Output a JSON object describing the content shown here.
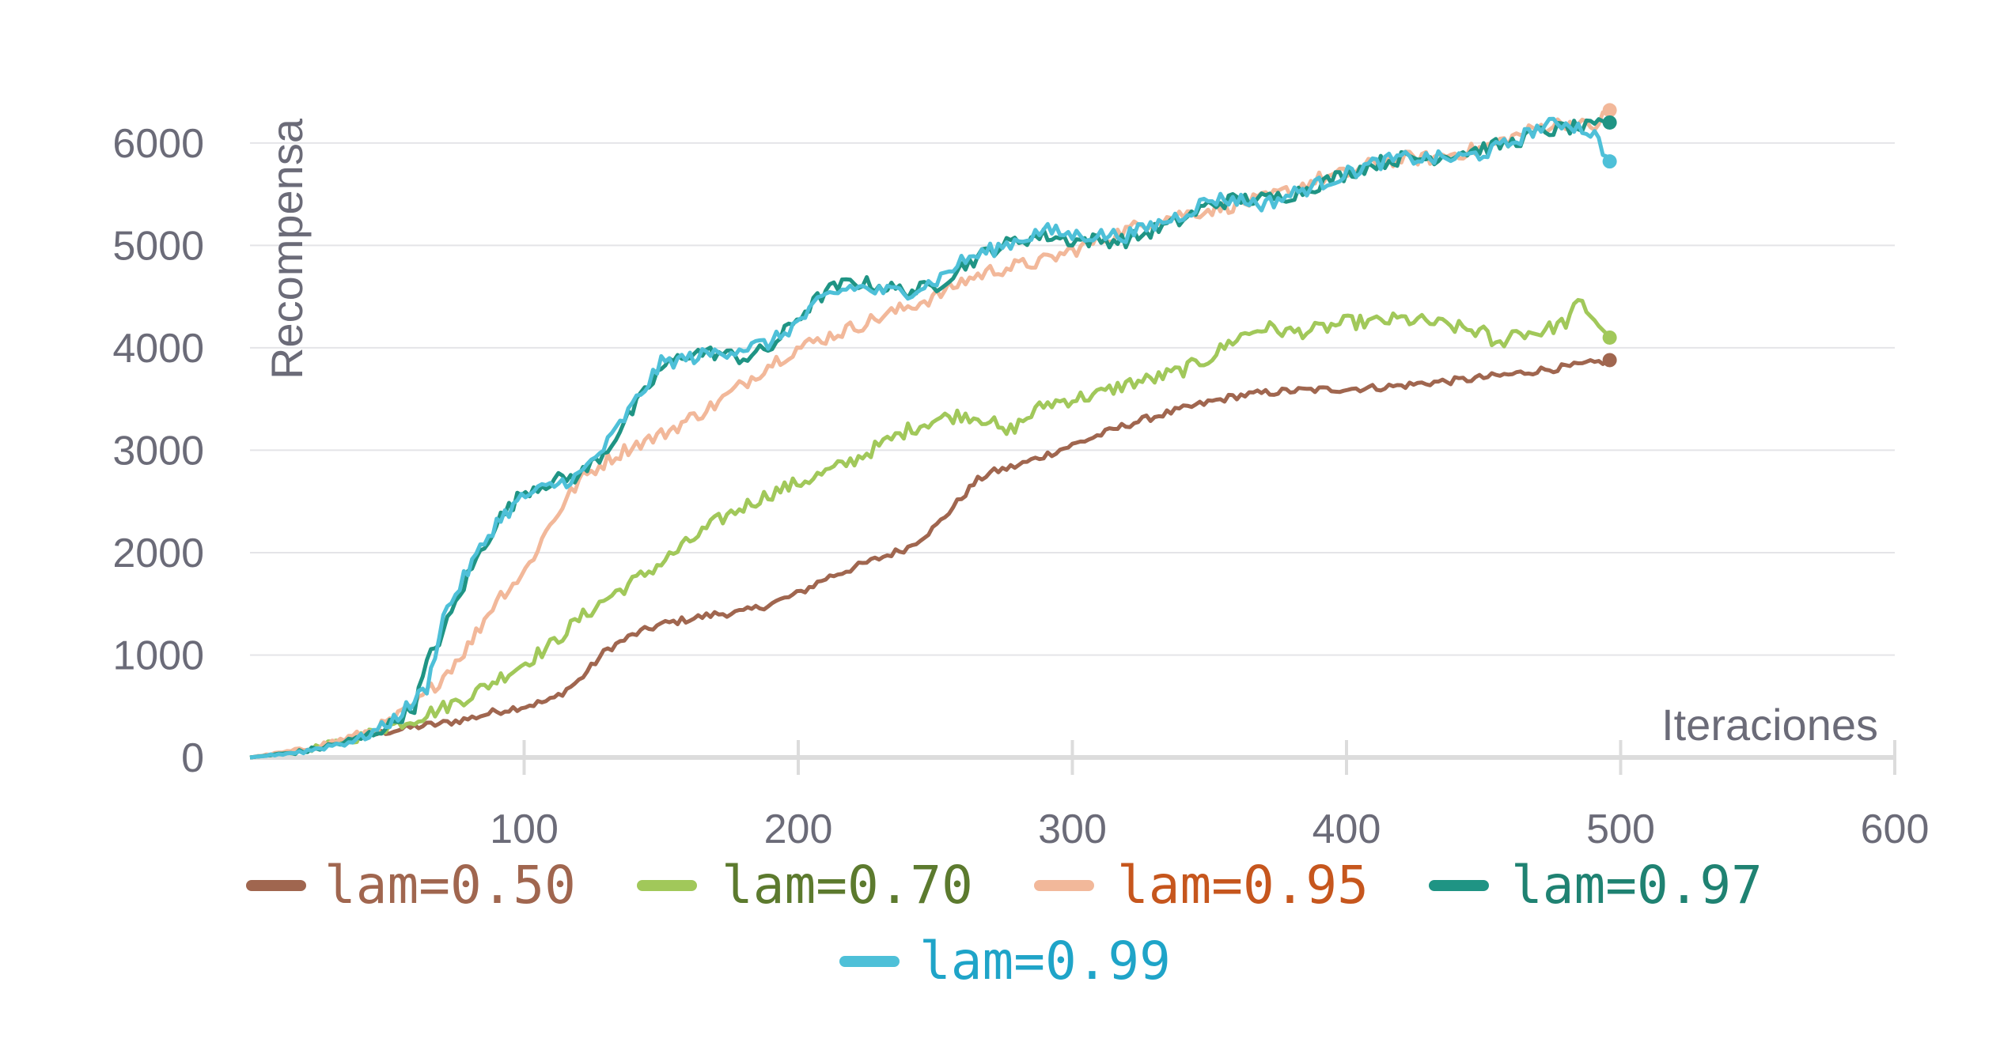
{
  "chart_data": {
    "type": "line",
    "xlabel": "Iteraciones",
    "ylabel": "Recompensa",
    "xlim": [
      0,
      600
    ],
    "ylim": [
      0,
      6300
    ],
    "xticks": [
      100,
      200,
      300,
      400,
      500,
      600
    ],
    "yticks": [
      0,
      1000,
      2000,
      3000,
      4000,
      5000,
      6000
    ],
    "grid": "horizontal",
    "legend_position": "bottom",
    "series": [
      {
        "name": "lam=0.50",
        "color": "#a0664f",
        "text_color": "#a0664f",
        "end_marker": true,
        "points": [
          [
            0,
            0
          ],
          [
            20,
            60
          ],
          [
            40,
            200
          ],
          [
            50,
            250
          ],
          [
            60,
            300
          ],
          [
            70,
            330
          ],
          [
            80,
            380
          ],
          [
            90,
            450
          ],
          [
            100,
            500
          ],
          [
            110,
            560
          ],
          [
            120,
            750
          ],
          [
            130,
            1050
          ],
          [
            140,
            1200
          ],
          [
            150,
            1300
          ],
          [
            160,
            1350
          ],
          [
            170,
            1400
          ],
          [
            180,
            1420
          ],
          [
            190,
            1500
          ],
          [
            200,
            1600
          ],
          [
            210,
            1750
          ],
          [
            220,
            1850
          ],
          [
            230,
            1950
          ],
          [
            240,
            2050
          ],
          [
            250,
            2250
          ],
          [
            255,
            2400
          ],
          [
            260,
            2550
          ],
          [
            265,
            2700
          ],
          [
            270,
            2780
          ],
          [
            280,
            2850
          ],
          [
            290,
            2950
          ],
          [
            300,
            3050
          ],
          [
            310,
            3150
          ],
          [
            320,
            3250
          ],
          [
            330,
            3330
          ],
          [
            340,
            3400
          ],
          [
            350,
            3470
          ],
          [
            360,
            3530
          ],
          [
            370,
            3560
          ],
          [
            380,
            3580
          ],
          [
            390,
            3590
          ],
          [
            400,
            3600
          ],
          [
            410,
            3610
          ],
          [
            420,
            3630
          ],
          [
            430,
            3660
          ],
          [
            440,
            3680
          ],
          [
            450,
            3710
          ],
          [
            460,
            3740
          ],
          [
            470,
            3780
          ],
          [
            480,
            3810
          ],
          [
            490,
            3850
          ],
          [
            496,
            3880
          ]
        ]
      },
      {
        "name": "lam=0.70",
        "color": "#a1c85a",
        "text_color": "#5c7a2e",
        "end_marker": true,
        "points": [
          [
            0,
            0
          ],
          [
            20,
            70
          ],
          [
            40,
            200
          ],
          [
            50,
            300
          ],
          [
            60,
            380
          ],
          [
            70,
            480
          ],
          [
            80,
            600
          ],
          [
            90,
            760
          ],
          [
            100,
            920
          ],
          [
            110,
            1100
          ],
          [
            120,
            1350
          ],
          [
            130,
            1550
          ],
          [
            140,
            1720
          ],
          [
            150,
            1900
          ],
          [
            160,
            2100
          ],
          [
            170,
            2300
          ],
          [
            180,
            2450
          ],
          [
            190,
            2580
          ],
          [
            200,
            2680
          ],
          [
            210,
            2780
          ],
          [
            220,
            2900
          ],
          [
            230,
            3050
          ],
          [
            240,
            3200
          ],
          [
            250,
            3300
          ],
          [
            260,
            3350
          ],
          [
            270,
            3300
          ],
          [
            275,
            3150
          ],
          [
            280,
            3250
          ],
          [
            290,
            3450
          ],
          [
            300,
            3500
          ],
          [
            310,
            3550
          ],
          [
            320,
            3650
          ],
          [
            330,
            3700
          ],
          [
            340,
            3780
          ],
          [
            350,
            3900
          ],
          [
            360,
            4100
          ],
          [
            370,
            4200
          ],
          [
            380,
            4150
          ],
          [
            390,
            4180
          ],
          [
            400,
            4250
          ],
          [
            410,
            4250
          ],
          [
            420,
            4280
          ],
          [
            430,
            4250
          ],
          [
            440,
            4200
          ],
          [
            450,
            4150
          ],
          [
            455,
            4000
          ],
          [
            460,
            4150
          ],
          [
            470,
            4150
          ],
          [
            480,
            4250
          ],
          [
            485,
            4450
          ],
          [
            490,
            4300
          ],
          [
            496,
            4100
          ]
        ]
      },
      {
        "name": "lam=0.95",
        "color": "#f2b89a",
        "text_color": "#c6561d",
        "end_marker": true,
        "points": [
          [
            0,
            0
          ],
          [
            20,
            80
          ],
          [
            40,
            220
          ],
          [
            50,
            330
          ],
          [
            60,
            500
          ],
          [
            70,
            780
          ],
          [
            80,
            1100
          ],
          [
            90,
            1550
          ],
          [
            100,
            1800
          ],
          [
            110,
            2300
          ],
          [
            120,
            2700
          ],
          [
            130,
            2900
          ],
          [
            140,
            3050
          ],
          [
            150,
            3150
          ],
          [
            160,
            3300
          ],
          [
            170,
            3450
          ],
          [
            180,
            3650
          ],
          [
            190,
            3850
          ],
          [
            200,
            4000
          ],
          [
            210,
            4100
          ],
          [
            220,
            4200
          ],
          [
            230,
            4300
          ],
          [
            240,
            4400
          ],
          [
            250,
            4500
          ],
          [
            260,
            4650
          ],
          [
            270,
            4750
          ],
          [
            280,
            4800
          ],
          [
            290,
            4850
          ],
          [
            300,
            4950
          ],
          [
            310,
            5050
          ],
          [
            320,
            5150
          ],
          [
            330,
            5250
          ],
          [
            340,
            5300
          ],
          [
            350,
            5350
          ],
          [
            360,
            5400
          ],
          [
            370,
            5450
          ],
          [
            380,
            5550
          ],
          [
            390,
            5650
          ],
          [
            400,
            5700
          ],
          [
            410,
            5800
          ],
          [
            420,
            5850
          ],
          [
            430,
            5850
          ],
          [
            440,
            5900
          ],
          [
            450,
            5950
          ],
          [
            460,
            6050
          ],
          [
            470,
            6150
          ],
          [
            480,
            6200
          ],
          [
            490,
            6150
          ],
          [
            496,
            6320
          ]
        ]
      },
      {
        "name": "lam=0.97",
        "color": "#1f9484",
        "text_color": "#1f8272",
        "end_marker": true,
        "points": [
          [
            0,
            0
          ],
          [
            20,
            60
          ],
          [
            40,
            180
          ],
          [
            50,
            300
          ],
          [
            60,
            500
          ],
          [
            65,
            950
          ],
          [
            70,
            1200
          ],
          [
            80,
            1800
          ],
          [
            90,
            2300
          ],
          [
            100,
            2600
          ],
          [
            110,
            2700
          ],
          [
            120,
            2750
          ],
          [
            130,
            3000
          ],
          [
            140,
            3400
          ],
          [
            150,
            3800
          ],
          [
            160,
            3950
          ],
          [
            170,
            3950
          ],
          [
            180,
            3900
          ],
          [
            190,
            4000
          ],
          [
            200,
            4300
          ],
          [
            210,
            4550
          ],
          [
            220,
            4650
          ],
          [
            230,
            4600
          ],
          [
            240,
            4550
          ],
          [
            250,
            4600
          ],
          [
            260,
            4800
          ],
          [
            270,
            4950
          ],
          [
            280,
            5050
          ],
          [
            290,
            5100
          ],
          [
            300,
            5050
          ],
          [
            310,
            5050
          ],
          [
            320,
            5050
          ],
          [
            330,
            5150
          ],
          [
            340,
            5250
          ],
          [
            350,
            5400
          ],
          [
            360,
            5450
          ],
          [
            370,
            5450
          ],
          [
            380,
            5500
          ],
          [
            390,
            5600
          ],
          [
            400,
            5700
          ],
          [
            410,
            5800
          ],
          [
            420,
            5850
          ],
          [
            430,
            5850
          ],
          [
            440,
            5900
          ],
          [
            450,
            5950
          ],
          [
            460,
            6000
          ],
          [
            470,
            6100
          ],
          [
            480,
            6150
          ],
          [
            490,
            6150
          ],
          [
            496,
            6200
          ]
        ]
      },
      {
        "name": "lam=0.99",
        "color": "#4ec0d8",
        "text_color": "#1fa4c8",
        "end_marker": true,
        "points": [
          [
            0,
            0
          ],
          [
            20,
            60
          ],
          [
            40,
            180
          ],
          [
            50,
            320
          ],
          [
            60,
            550
          ],
          [
            65,
            700
          ],
          [
            70,
            1350
          ],
          [
            80,
            1850
          ],
          [
            90,
            2300
          ],
          [
            100,
            2550
          ],
          [
            110,
            2650
          ],
          [
            120,
            2750
          ],
          [
            130,
            3050
          ],
          [
            140,
            3450
          ],
          [
            150,
            3850
          ],
          [
            160,
            3900
          ],
          [
            170,
            3950
          ],
          [
            180,
            4000
          ],
          [
            190,
            4050
          ],
          [
            200,
            4250
          ],
          [
            210,
            4500
          ],
          [
            220,
            4600
          ],
          [
            230,
            4550
          ],
          [
            240,
            4550
          ],
          [
            250,
            4650
          ],
          [
            260,
            4850
          ],
          [
            270,
            4950
          ],
          [
            280,
            5050
          ],
          [
            290,
            5150
          ],
          [
            300,
            5100
          ],
          [
            310,
            5100
          ],
          [
            320,
            5100
          ],
          [
            330,
            5200
          ],
          [
            340,
            5300
          ],
          [
            350,
            5450
          ],
          [
            360,
            5450
          ],
          [
            370,
            5400
          ],
          [
            380,
            5500
          ],
          [
            390,
            5600
          ],
          [
            400,
            5700
          ],
          [
            410,
            5800
          ],
          [
            420,
            5850
          ],
          [
            430,
            5850
          ],
          [
            440,
            5850
          ],
          [
            450,
            5900
          ],
          [
            460,
            6000
          ],
          [
            470,
            6150
          ],
          [
            480,
            6200
          ],
          [
            490,
            6100
          ],
          [
            496,
            5820
          ]
        ]
      }
    ]
  }
}
